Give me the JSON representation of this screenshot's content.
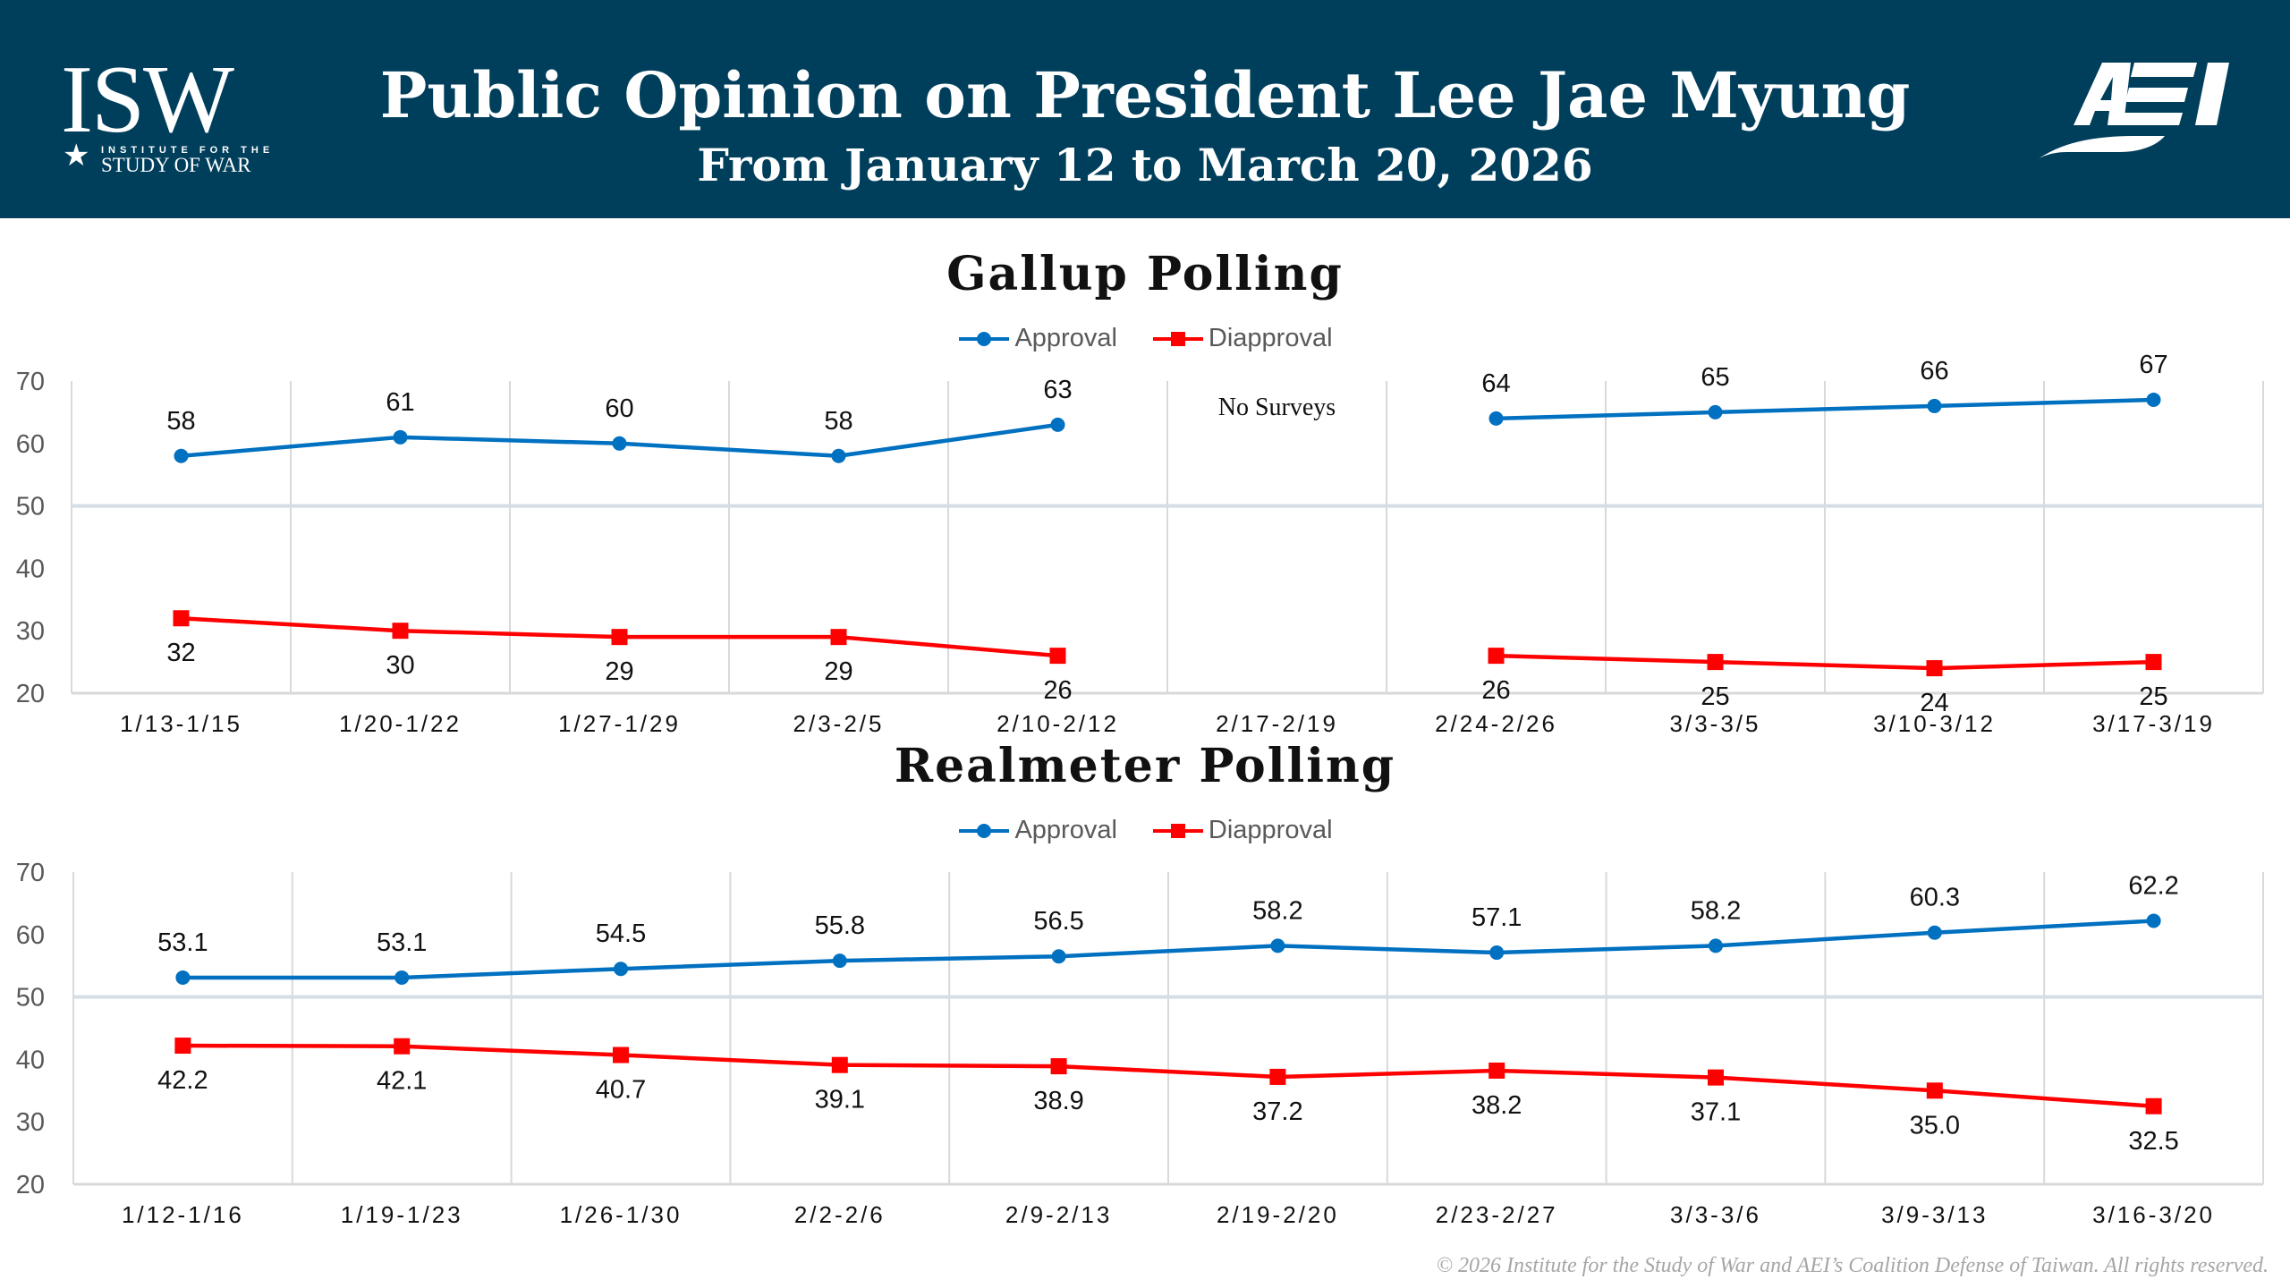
{
  "header": {
    "title": "Public Opinion on President Lee Jae Myung",
    "subtitle": "From January 12 to March 20, 2026",
    "left_logo": {
      "big": "ISW",
      "line1": "INSTITUTE FOR THE",
      "line2": "STUDY OF WAR",
      "icon": "star-icon"
    },
    "right_logo": {
      "text": "AEI",
      "icon": "aei-logo-icon"
    },
    "background_color": "#003f5c"
  },
  "colors": {
    "approval": "#0070c0",
    "disapproval": "#ff0000",
    "midline": "#d6dde4",
    "grid": "#d9d9d9"
  },
  "chart_data": [
    {
      "type": "line",
      "title": "Gallup Polling",
      "categories": [
        "1/13-1/15",
        "1/20-1/22",
        "1/27-1/29",
        "2/3-2/5",
        "2/10-2/12",
        "2/17-2/19",
        "2/24-2/26",
        "3/3-3/5",
        "3/10-3/12",
        "3/17-3/19"
      ],
      "series": [
        {
          "name": "Approval",
          "marker": "circle",
          "values": [
            58,
            61,
            60,
            58,
            63,
            null,
            64,
            65,
            66,
            67
          ]
        },
        {
          "name": "Diapproval",
          "marker": "square",
          "values": [
            32,
            30,
            29,
            29,
            26,
            null,
            26,
            25,
            24,
            25
          ]
        }
      ],
      "yticks": [
        20,
        30,
        40,
        50,
        60,
        70
      ],
      "ylim": [
        20,
        70
      ],
      "annotations": [
        {
          "category": "2/17-2/19",
          "text": "No Surveys"
        }
      ],
      "reference_line": 50,
      "legend": "top-center",
      "xlabel": "",
      "ylabel": ""
    },
    {
      "type": "line",
      "title": "Realmeter Polling",
      "categories": [
        "1/12-1/16",
        "1/19-1/23",
        "1/26-1/30",
        "2/2-2/6",
        "2/9-2/13",
        "2/19-2/20",
        "2/23-2/27",
        "3/3-3/6",
        "3/9-3/13",
        "3/16-3/20"
      ],
      "series": [
        {
          "name": "Approval",
          "marker": "circle",
          "values": [
            53.1,
            53.1,
            54.5,
            55.8,
            56.5,
            58.2,
            57.1,
            58.2,
            60.3,
            62.2
          ]
        },
        {
          "name": "Diapproval",
          "marker": "square",
          "values": [
            42.2,
            42.1,
            40.7,
            39.1,
            38.9,
            37.2,
            38.2,
            37.1,
            35.0,
            32.5
          ]
        }
      ],
      "value_labels": {
        "Approval": [
          "53.1",
          "53.1",
          "54.5",
          "55.8",
          "56.5",
          "58.2",
          "57.1",
          "58.2",
          "60.3",
          "62.2"
        ],
        "Diapproval": [
          "42.2",
          "42.1",
          "40.7",
          "39.1",
          "38.9",
          "37.2",
          "38.2",
          "37.1",
          "35.0",
          "32.5"
        ]
      },
      "yticks": [
        20,
        30,
        40,
        50,
        60,
        70
      ],
      "ylim": [
        20,
        70
      ],
      "reference_line": 50,
      "legend": "top-center",
      "xlabel": "",
      "ylabel": ""
    }
  ],
  "footer": "© 2026 Institute for the Study of War and AEI’s Coalition Defense of Taiwan. All rights reserved."
}
